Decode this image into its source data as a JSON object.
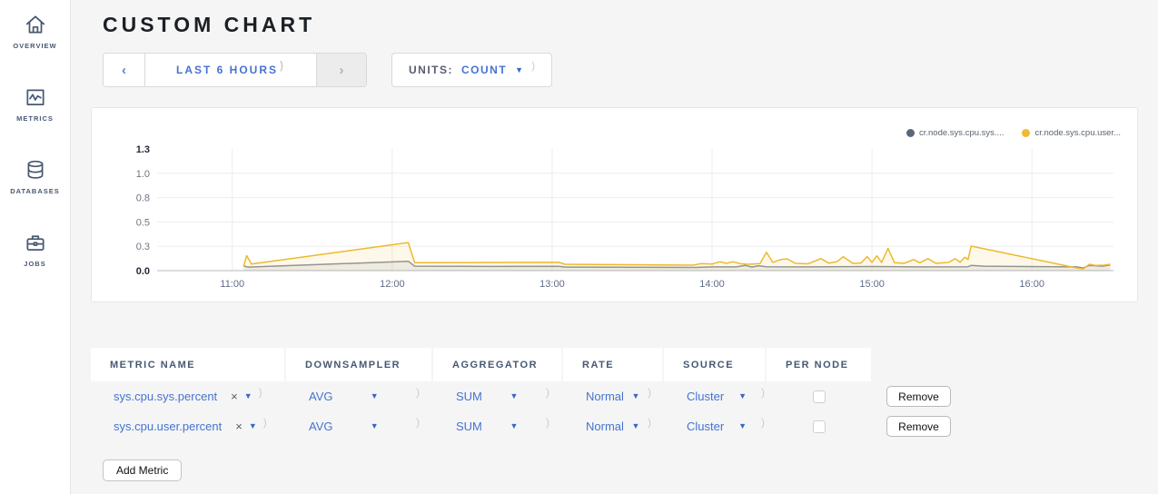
{
  "sidebar": {
    "items": [
      {
        "label": "OVERVIEW",
        "icon": "home-icon"
      },
      {
        "label": "METRICS",
        "icon": "metrics-icon"
      },
      {
        "label": "DATABASES",
        "icon": "database-icon"
      },
      {
        "label": "JOBS",
        "icon": "briefcase-icon"
      }
    ]
  },
  "header": {
    "title": "CUSTOM CHART"
  },
  "controls": {
    "time_window": {
      "prev": "‹",
      "label": "LAST 6 HOURS",
      "next": "›"
    },
    "units": {
      "label": "UNITS:",
      "value": "COUNT"
    }
  },
  "chart_data": {
    "type": "line",
    "title": "",
    "xlabel": "",
    "ylabel": "",
    "xlim": [
      10.53,
      16.51
    ],
    "ylim": [
      0,
      1.3
    ],
    "grid": true,
    "legend_position": "top-right",
    "x_ticks": [
      {
        "v": 11,
        "label": "11:00"
      },
      {
        "v": 12,
        "label": "12:00"
      },
      {
        "v": 13,
        "label": "13:00"
      },
      {
        "v": 14,
        "label": "14:00"
      },
      {
        "v": 15,
        "label": "15:00"
      },
      {
        "v": 16,
        "label": "16:00"
      }
    ],
    "y_ticks": [
      {
        "v": 0,
        "label": "0.0",
        "bold": true
      },
      {
        "v": 0.26,
        "label": "0.3",
        "bold": false
      },
      {
        "v": 0.52,
        "label": "0.5",
        "bold": false
      },
      {
        "v": 0.78,
        "label": "0.8",
        "bold": false
      },
      {
        "v": 1.04,
        "label": "1.0",
        "bold": false
      },
      {
        "v": 1.3,
        "label": "1.3",
        "bold": true
      }
    ],
    "series": [
      {
        "name": "cr.node.sys.cpu.sys....",
        "dot_color": "#5a6779",
        "line_color": "#8a919e",
        "fill_color": "rgba(130,138,152,0.12)",
        "points": [
          [
            11.07,
            0.05
          ],
          [
            11.1,
            0.038
          ],
          [
            12.1,
            0.1
          ],
          [
            12.14,
            0.048
          ],
          [
            12.6,
            0.045
          ],
          [
            13.04,
            0.046
          ],
          [
            13.08,
            0.038
          ],
          [
            13.9,
            0.034
          ],
          [
            14.0,
            0.04
          ],
          [
            14.15,
            0.04
          ],
          [
            14.21,
            0.055
          ],
          [
            14.25,
            0.038
          ],
          [
            14.29,
            0.052
          ],
          [
            14.34,
            0.042
          ],
          [
            14.6,
            0.04
          ],
          [
            15.0,
            0.044
          ],
          [
            15.3,
            0.04
          ],
          [
            15.6,
            0.042
          ],
          [
            15.62,
            0.055
          ],
          [
            15.7,
            0.048
          ],
          [
            16.28,
            0.04
          ],
          [
            16.32,
            0.028
          ],
          [
            16.36,
            0.055
          ],
          [
            16.44,
            0.048
          ],
          [
            16.49,
            0.06
          ]
        ]
      },
      {
        "name": "cr.node.sys.cpu.user...",
        "dot_color": "#f0ba31",
        "line_color": "#edb92d",
        "fill_color": "rgba(238,186,45,0.10)",
        "points": [
          [
            11.07,
            0.045
          ],
          [
            11.09,
            0.16
          ],
          [
            11.12,
            0.07
          ],
          [
            12.1,
            0.3
          ],
          [
            12.14,
            0.085
          ],
          [
            13.04,
            0.088
          ],
          [
            13.08,
            0.068
          ],
          [
            13.5,
            0.063
          ],
          [
            13.88,
            0.058
          ],
          [
            13.93,
            0.075
          ],
          [
            14.0,
            0.07
          ],
          [
            14.05,
            0.095
          ],
          [
            14.09,
            0.078
          ],
          [
            14.13,
            0.095
          ],
          [
            14.18,
            0.073
          ],
          [
            14.23,
            0.068
          ],
          [
            14.3,
            0.075
          ],
          [
            14.34,
            0.195
          ],
          [
            14.38,
            0.088
          ],
          [
            14.43,
            0.118
          ],
          [
            14.47,
            0.125
          ],
          [
            14.52,
            0.078
          ],
          [
            14.6,
            0.073
          ],
          [
            14.68,
            0.128
          ],
          [
            14.73,
            0.08
          ],
          [
            14.78,
            0.095
          ],
          [
            14.82,
            0.148
          ],
          [
            14.88,
            0.078
          ],
          [
            14.93,
            0.08
          ],
          [
            14.97,
            0.148
          ],
          [
            15.0,
            0.088
          ],
          [
            15.03,
            0.158
          ],
          [
            15.06,
            0.088
          ],
          [
            15.1,
            0.238
          ],
          [
            15.14,
            0.085
          ],
          [
            15.2,
            0.078
          ],
          [
            15.26,
            0.118
          ],
          [
            15.3,
            0.083
          ],
          [
            15.35,
            0.128
          ],
          [
            15.4,
            0.078
          ],
          [
            15.48,
            0.088
          ],
          [
            15.52,
            0.128
          ],
          [
            15.55,
            0.088
          ],
          [
            15.58,
            0.143
          ],
          [
            15.6,
            0.118
          ],
          [
            15.62,
            0.262
          ],
          [
            16.28,
            0.028
          ],
          [
            16.32,
            0.018
          ],
          [
            16.36,
            0.068
          ],
          [
            16.4,
            0.055
          ],
          [
            16.45,
            0.058
          ],
          [
            16.49,
            0.068
          ]
        ]
      }
    ]
  },
  "table": {
    "columns": [
      "METRIC NAME",
      "DOWNSAMPLER",
      "AGGREGATOR",
      "RATE",
      "SOURCE",
      "PER NODE"
    ],
    "rows": [
      {
        "metric": "sys.cpu.sys.percent",
        "clear": "×",
        "downsampler": "AVG",
        "aggregator": "SUM",
        "rate": "Normal",
        "source": "Cluster",
        "per_node": false,
        "remove_label": "Remove"
      },
      {
        "metric": "sys.cpu.user.percent",
        "clear": "×",
        "downsampler": "AVG",
        "aggregator": "SUM",
        "rate": "Normal",
        "source": "Cluster",
        "per_node": false,
        "remove_label": "Remove"
      }
    ],
    "add_metric_label": "Add Metric"
  }
}
